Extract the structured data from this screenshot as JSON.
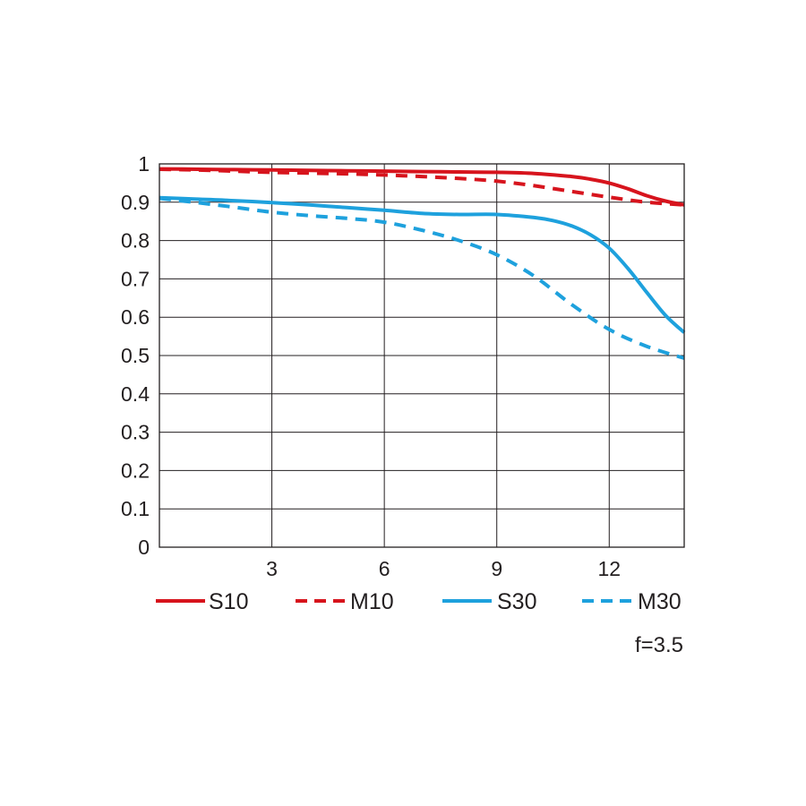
{
  "chart_data": {
    "type": "line",
    "x_ticks": [
      "3",
      "6",
      "9",
      "12"
    ],
    "y_ticks": [
      "0",
      "0.1",
      "0.2",
      "0.3",
      "0.4",
      "0.5",
      "0.6",
      "0.7",
      "0.8",
      "0.9",
      "1"
    ],
    "xlim": [
      0,
      14
    ],
    "ylim": [
      0,
      1
    ],
    "grid": true,
    "legend_position": "bottom",
    "note": "f=3.5",
    "series": [
      {
        "name": "S10",
        "color": "#d7141d",
        "dash": "solid",
        "x": [
          0,
          1,
          2,
          3,
          4,
          5,
          6,
          7,
          8,
          9,
          10,
          11,
          11.5,
          12,
          12.5,
          13,
          13.5,
          14
        ],
        "y": [
          0.987,
          0.986,
          0.985,
          0.984,
          0.983,
          0.982,
          0.981,
          0.98,
          0.979,
          0.978,
          0.975,
          0.967,
          0.96,
          0.95,
          0.935,
          0.917,
          0.903,
          0.893
        ]
      },
      {
        "name": "M10",
        "color": "#d7141d",
        "dash": "dashed",
        "x": [
          0,
          1,
          2,
          3,
          4,
          5,
          6,
          7,
          8,
          9,
          10,
          11,
          12,
          13,
          14
        ],
        "y": [
          0.986,
          0.984,
          0.981,
          0.978,
          0.976,
          0.974,
          0.971,
          0.967,
          0.962,
          0.955,
          0.943,
          0.928,
          0.913,
          0.9,
          0.893
        ]
      },
      {
        "name": "S30",
        "color": "#1ea1dd",
        "dash": "solid",
        "x": [
          0,
          1,
          2,
          3,
          4,
          5,
          6,
          7,
          8,
          9,
          10,
          10.5,
          11,
          11.5,
          12,
          12.5,
          13,
          13.5,
          14
        ],
        "y": [
          0.912,
          0.908,
          0.904,
          0.899,
          0.893,
          0.886,
          0.879,
          0.871,
          0.868,
          0.868,
          0.86,
          0.852,
          0.838,
          0.815,
          0.78,
          0.727,
          0.665,
          0.605,
          0.56
        ]
      },
      {
        "name": "M30",
        "color": "#1ea1dd",
        "dash": "dashed",
        "x": [
          0,
          1,
          2,
          3,
          4,
          5,
          6,
          7,
          8,
          9,
          10,
          11,
          12,
          13,
          14
        ],
        "y": [
          0.91,
          0.899,
          0.887,
          0.874,
          0.865,
          0.858,
          0.848,
          0.827,
          0.8,
          0.763,
          0.707,
          0.633,
          0.568,
          0.524,
          0.493
        ]
      }
    ]
  }
}
